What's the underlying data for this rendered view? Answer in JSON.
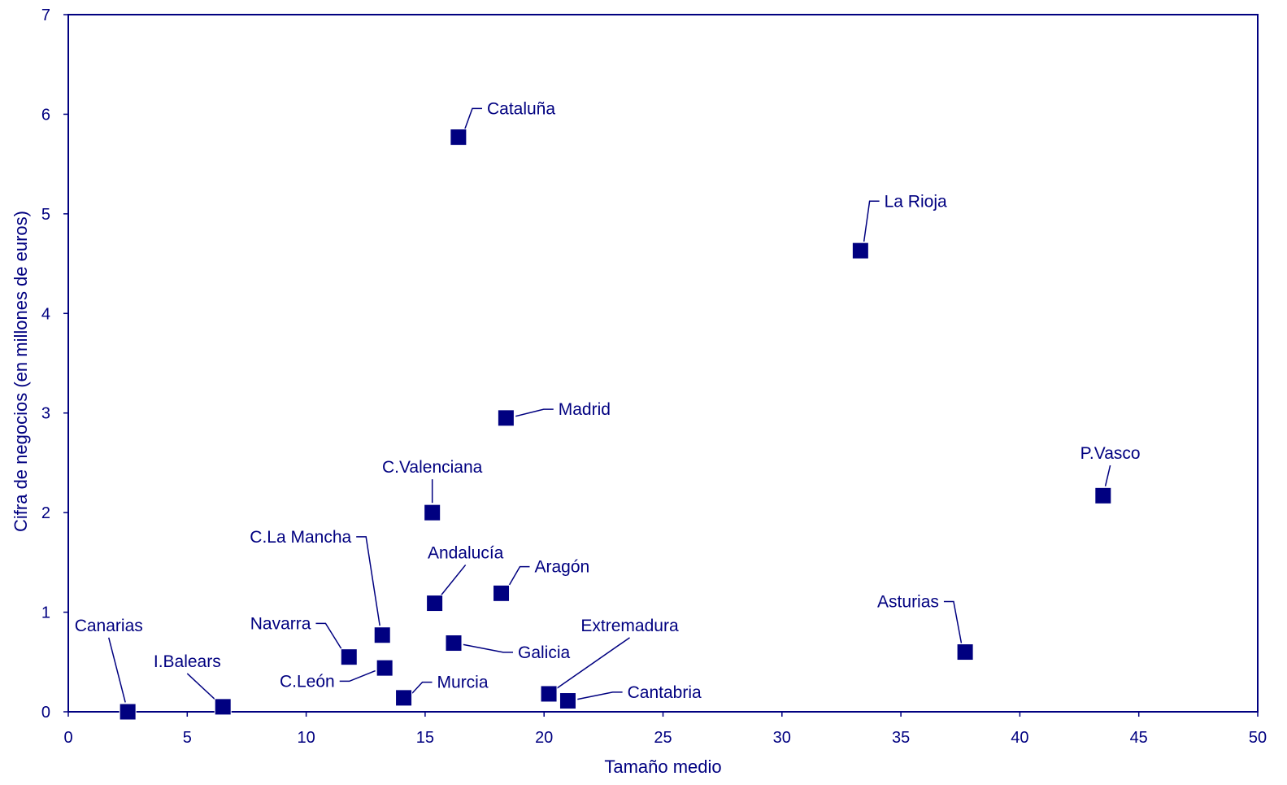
{
  "chart_data": {
    "type": "scatter",
    "xlabel": "Tamaño medio",
    "ylabel": "Cifra de negocios (en millones de euros)",
    "xlim": [
      0,
      50
    ],
    "ylim": [
      0,
      7
    ],
    "xticks": [
      0,
      5,
      10,
      15,
      20,
      25,
      30,
      35,
      40,
      45,
      50
    ],
    "yticks": [
      0,
      1,
      2,
      3,
      4,
      5,
      6,
      7
    ],
    "grid": false,
    "legend": "none",
    "marker": "square",
    "color": "#000080",
    "points": [
      {
        "label": "Cataluña",
        "x": 16.4,
        "y": 5.77,
        "label_x": 17.6,
        "label_y": 6.0,
        "anchor": "start"
      },
      {
        "label": "La Rioja",
        "x": 33.3,
        "y": 4.63,
        "label_x": 34.3,
        "label_y": 5.07,
        "anchor": "start"
      },
      {
        "label": "Madrid",
        "x": 18.4,
        "y": 2.95,
        "label_x": 20.6,
        "label_y": 2.98,
        "anchor": "start"
      },
      {
        "label": "P.Vasco",
        "x": 43.5,
        "y": 2.17,
        "label_x": 43.8,
        "label_y": 2.54,
        "anchor": "middle"
      },
      {
        "label": "C.Valenciana",
        "x": 15.3,
        "y": 2.0,
        "label_x": 15.3,
        "label_y": 2.4,
        "anchor": "middle"
      },
      {
        "label": "C.La Mancha",
        "x": 13.2,
        "y": 0.77,
        "label_x": 11.9,
        "label_y": 1.7,
        "anchor": "end"
      },
      {
        "label": "Andalucía",
        "x": 15.4,
        "y": 1.09,
        "label_x": 16.7,
        "label_y": 1.54,
        "anchor": "middle"
      },
      {
        "label": "Aragón",
        "x": 18.2,
        "y": 1.19,
        "label_x": 19.6,
        "label_y": 1.4,
        "anchor": "start"
      },
      {
        "label": "Asturias",
        "x": 37.7,
        "y": 0.6,
        "label_x": 36.6,
        "label_y": 1.05,
        "anchor": "end"
      },
      {
        "label": "Navarra",
        "x": 11.8,
        "y": 0.55,
        "label_x": 10.2,
        "label_y": 0.83,
        "anchor": "end"
      },
      {
        "label": "Canarias",
        "x": 2.5,
        "y": 0.0,
        "label_x": 1.7,
        "label_y": 0.81,
        "anchor": "middle"
      },
      {
        "label": "Galicia",
        "x": 16.2,
        "y": 0.69,
        "label_x": 18.9,
        "label_y": 0.54,
        "anchor": "start"
      },
      {
        "label": "Extremadura",
        "x": 20.2,
        "y": 0.18,
        "label_x": 23.6,
        "label_y": 0.81,
        "anchor": "middle"
      },
      {
        "label": "I.Balears",
        "x": 6.5,
        "y": 0.05,
        "label_x": 5.0,
        "label_y": 0.45,
        "anchor": "middle"
      },
      {
        "label": "C.León",
        "x": 13.3,
        "y": 0.44,
        "label_x": 11.2,
        "label_y": 0.25,
        "anchor": "end"
      },
      {
        "label": "Murcia",
        "x": 14.1,
        "y": 0.14,
        "label_x": 15.5,
        "label_y": 0.24,
        "anchor": "start"
      },
      {
        "label": "Cantabria",
        "x": 21.0,
        "y": 0.11,
        "label_x": 23.5,
        "label_y": 0.14,
        "anchor": "start"
      }
    ]
  }
}
